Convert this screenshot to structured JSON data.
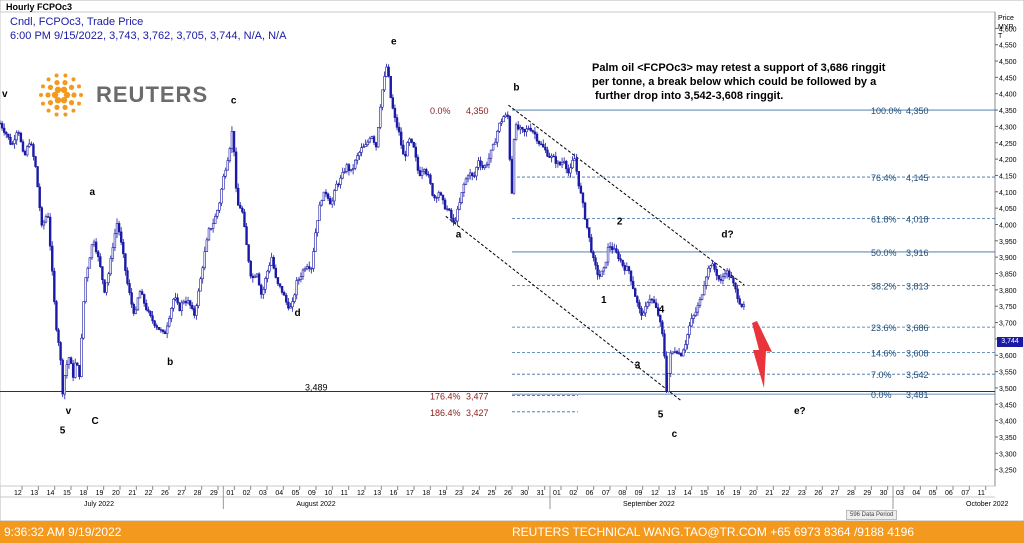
{
  "header": {
    "title": "Hourly FCPOc3",
    "series_desc": "Cndl, FCPOc3, Trade Price",
    "ohlc_line": "6:00 PM 9/15/2022, 3,743, 3,762, 3,705, 3,744, N/A, N/A"
  },
  "logo": {
    "word": "REUTERS"
  },
  "price_axis_title": [
    "Price",
    "MYR",
    "T"
  ],
  "last_price_tag": "3,744",
  "status_bar": {
    "left": "9:36:32 AM 9/19/2022",
    "right": "REUTERS TECHNICAL  WANG.TAO@TR.COM  +65 6973 8364 /9188 4196"
  },
  "data_badge": "596 Data Period",
  "colors": {
    "candle": "#1a1aa6",
    "fib": "#3a6ea5",
    "fib_label": "#1f4e79",
    "ext_label": "#8b1a1a",
    "status_bg": "#f39a1e",
    "arrow": "#e8343a"
  },
  "chart_data": {
    "type": "candlestick",
    "title": "Hourly FCPOc3",
    "ylabel": "Price MYR",
    "ylim": [
      3200,
      4650
    ],
    "y_ticks": [
      3250,
      3300,
      3350,
      3400,
      3450,
      3500,
      3550,
      3600,
      3650,
      3700,
      3750,
      3800,
      3850,
      3900,
      3950,
      4000,
      4050,
      4100,
      4150,
      4200,
      4250,
      4300,
      4350,
      4400,
      4450,
      4500,
      4550,
      4600,
      4650
    ],
    "x_day_labels": [
      "12",
      "13",
      "14",
      "15",
      "18",
      "19",
      "20",
      "21",
      "22",
      "26",
      "27",
      "28",
      "29",
      "01",
      "02",
      "03",
      "04",
      "05",
      "09",
      "10",
      "11",
      "12",
      "13",
      "16",
      "17",
      "18",
      "19",
      "23",
      "24",
      "25",
      "26",
      "30",
      "31",
      "01",
      "02",
      "06",
      "07",
      "08",
      "09",
      "12",
      "13",
      "14",
      "15",
      "16",
      "19",
      "20",
      "21",
      "22",
      "23",
      "26",
      "27",
      "28",
      "29",
      "30",
      "03",
      "04",
      "05",
      "06",
      "07",
      "11"
    ],
    "x_months": [
      "July 2022",
      "August 2022",
      "September 2022",
      "October 2022"
    ],
    "price_path": [
      [
        0,
        4310
      ],
      [
        0.006,
        4280
      ],
      [
        0.012,
        4240
      ],
      [
        0.018,
        4300
      ],
      [
        0.024,
        4200
      ],
      [
        0.03,
        4260
      ],
      [
        0.036,
        4170
      ],
      [
        0.042,
        3990
      ],
      [
        0.048,
        4040
      ],
      [
        0.052,
        3870
      ],
      [
        0.056,
        3700
      ],
      [
        0.06,
        3620
      ],
      [
        0.063,
        3490
      ],
      [
        0.066,
        3560
      ],
      [
        0.07,
        3600
      ],
      [
        0.073,
        3530
      ],
      [
        0.076,
        3580
      ],
      [
        0.08,
        3540
      ],
      [
        0.085,
        3820
      ],
      [
        0.09,
        3900
      ],
      [
        0.094,
        3960
      ],
      [
        0.1,
        3880
      ],
      [
        0.105,
        3800
      ],
      [
        0.11,
        3860
      ],
      [
        0.114,
        3950
      ],
      [
        0.118,
        4010
      ],
      [
        0.124,
        3900
      ],
      [
        0.128,
        3820
      ],
      [
        0.132,
        3760
      ],
      [
        0.136,
        3720
      ],
      [
        0.14,
        3800
      ],
      [
        0.145,
        3760
      ],
      [
        0.15,
        3720
      ],
      [
        0.155,
        3700
      ],
      [
        0.16,
        3680
      ],
      [
        0.165,
        3660
      ],
      [
        0.17,
        3720
      ],
      [
        0.175,
        3780
      ],
      [
        0.18,
        3740
      ],
      [
        0.185,
        3770
      ],
      [
        0.19,
        3760
      ],
      [
        0.195,
        3720
      ],
      [
        0.2,
        3800
      ],
      [
        0.205,
        3900
      ],
      [
        0.21,
        3980
      ],
      [
        0.215,
        4010
      ],
      [
        0.22,
        4060
      ],
      [
        0.225,
        4150
      ],
      [
        0.23,
        4220
      ],
      [
        0.234,
        4300
      ],
      [
        0.238,
        4060
      ],
      [
        0.243,
        4050
      ],
      [
        0.248,
        3930
      ],
      [
        0.253,
        3830
      ],
      [
        0.258,
        3860
      ],
      [
        0.263,
        3780
      ],
      [
        0.268,
        3850
      ],
      [
        0.273,
        3900
      ],
      [
        0.278,
        3820
      ],
      [
        0.283,
        3800
      ],
      [
        0.288,
        3760
      ],
      [
        0.293,
        3740
      ],
      [
        0.298,
        3820
      ],
      [
        0.303,
        3850
      ],
      [
        0.308,
        3880
      ],
      [
        0.313,
        3870
      ],
      [
        0.318,
        4000
      ],
      [
        0.323,
        4080
      ],
      [
        0.328,
        4100
      ],
      [
        0.333,
        4060
      ],
      [
        0.338,
        4120
      ],
      [
        0.343,
        4140
      ],
      [
        0.348,
        4180
      ],
      [
        0.353,
        4160
      ],
      [
        0.358,
        4200
      ],
      [
        0.363,
        4230
      ],
      [
        0.368,
        4240
      ],
      [
        0.373,
        4280
      ],
      [
        0.378,
        4240
      ],
      [
        0.383,
        4390
      ],
      [
        0.389,
        4490
      ],
      [
        0.393,
        4380
      ],
      [
        0.397,
        4320
      ],
      [
        0.401,
        4280
      ],
      [
        0.406,
        4200
      ],
      [
        0.411,
        4260
      ],
      [
        0.416,
        4230
      ],
      [
        0.421,
        4150
      ],
      [
        0.426,
        4180
      ],
      [
        0.431,
        4140
      ],
      [
        0.436,
        4080
      ],
      [
        0.441,
        4100
      ],
      [
        0.446,
        4060
      ],
      [
        0.451,
        4040
      ],
      [
        0.456,
        4000
      ],
      [
        0.461,
        4050
      ],
      [
        0.466,
        4120
      ],
      [
        0.471,
        4160
      ],
      [
        0.476,
        4140
      ],
      [
        0.481,
        4200
      ],
      [
        0.486,
        4170
      ],
      [
        0.491,
        4200
      ],
      [
        0.496,
        4240
      ],
      [
        0.501,
        4300
      ],
      [
        0.506,
        4330
      ],
      [
        0.511,
        4330
      ],
      [
        0.514,
        4060
      ],
      [
        0.517,
        4300
      ],
      [
        0.522,
        4290
      ],
      [
        0.527,
        4280
      ],
      [
        0.532,
        4300
      ],
      [
        0.537,
        4280
      ],
      [
        0.542,
        4250
      ],
      [
        0.547,
        4230
      ],
      [
        0.552,
        4210
      ],
      [
        0.557,
        4200
      ],
      [
        0.562,
        4180
      ],
      [
        0.567,
        4200
      ],
      [
        0.572,
        4150
      ],
      [
        0.577,
        4210
      ],
      [
        0.582,
        4120
      ],
      [
        0.587,
        4040
      ],
      [
        0.592,
        3960
      ],
      [
        0.597,
        3880
      ],
      [
        0.602,
        3840
      ],
      [
        0.607,
        3860
      ],
      [
        0.612,
        3940
      ],
      [
        0.617,
        3920
      ],
      [
        0.622,
        3900
      ],
      [
        0.627,
        3870
      ],
      [
        0.632,
        3860
      ],
      [
        0.637,
        3800
      ],
      [
        0.642,
        3740
      ],
      [
        0.647,
        3720
      ],
      [
        0.652,
        3780
      ],
      [
        0.657,
        3760
      ],
      [
        0.662,
        3720
      ],
      [
        0.667,
        3640
      ],
      [
        0.67,
        3490
      ],
      [
        0.674,
        3600
      ],
      [
        0.679,
        3620
      ],
      [
        0.684,
        3600
      ],
      [
        0.689,
        3640
      ],
      [
        0.694,
        3700
      ],
      [
        0.699,
        3730
      ],
      [
        0.704,
        3770
      ],
      [
        0.709,
        3840
      ],
      [
        0.714,
        3880
      ],
      [
        0.719,
        3860
      ],
      [
        0.724,
        3820
      ],
      [
        0.729,
        3860
      ],
      [
        0.734,
        3840
      ],
      [
        0.739,
        3800
      ],
      [
        0.744,
        3760
      ],
      [
        0.748,
        3744
      ]
    ],
    "wave_labels": [
      {
        "text": "v",
        "x": 0.002,
        "y": 4390
      },
      {
        "text": "a",
        "x": 0.09,
        "y": 4090
      },
      {
        "text": "b",
        "x": 0.168,
        "y": 3570
      },
      {
        "text": "c",
        "x": 0.232,
        "y": 4370
      },
      {
        "text": "d",
        "x": 0.296,
        "y": 3720
      },
      {
        "text": "e",
        "x": 0.393,
        "y": 4550
      },
      {
        "text": "a",
        "x": 0.458,
        "y": 3960
      },
      {
        "text": "b",
        "x": 0.516,
        "y": 4410
      },
      {
        "text": "2",
        "x": 0.62,
        "y": 4000
      },
      {
        "text": "1",
        "x": 0.604,
        "y": 3760
      },
      {
        "text": "4",
        "x": 0.662,
        "y": 3730
      },
      {
        "text": "3",
        "x": 0.638,
        "y": 3560
      },
      {
        "text": "5",
        "x": 0.661,
        "y": 3410
      },
      {
        "text": "c",
        "x": 0.675,
        "y": 3350
      },
      {
        "text": "d?",
        "x": 0.725,
        "y": 3960
      },
      {
        "text": "e?",
        "x": 0.798,
        "y": 3420
      },
      {
        "text": "v",
        "x": 0.066,
        "y": 3420
      },
      {
        "text": "5",
        "x": 0.06,
        "y": 3360
      },
      {
        "text": "C",
        "x": 0.092,
        "y": 3390
      }
    ],
    "fib_levels": [
      {
        "pct": "100.0%",
        "value": "4,350",
        "y": 4350,
        "solid": true
      },
      {
        "pct": "76.4%",
        "value": "4,145",
        "y": 4145,
        "solid": false
      },
      {
        "pct": "61.8%",
        "value": "4,018",
        "y": 4018,
        "solid": false
      },
      {
        "pct": "50.0%",
        "value": "3,916",
        "y": 3916,
        "solid": true
      },
      {
        "pct": "38.2%",
        "value": "3,813",
        "y": 3813,
        "solid": false
      },
      {
        "pct": "23.6%",
        "value": "3,686",
        "y": 3686,
        "solid": false
      },
      {
        "pct": "14.6%",
        "value": "3,608",
        "y": 3608,
        "solid": false
      },
      {
        "pct": "7.0%",
        "value": "3,542",
        "y": 3542,
        "solid": false
      },
      {
        "pct": "0.0%",
        "value": "3,481",
        "y": 3481,
        "solid": true
      }
    ],
    "ext_levels": [
      {
        "pct": "0.0%",
        "value": "4,350",
        "y": 4350
      },
      {
        "pct": "176.4%",
        "value": "3,477",
        "y": 3477
      },
      {
        "pct": "186.4%",
        "value": "3,427",
        "y": 3427
      }
    ],
    "support_line": {
      "label": "3,489",
      "y": 3489
    },
    "channel_upper": [
      [
        0.511,
        4365
      ],
      [
        0.748,
        3815
      ]
    ],
    "channel_lower": [
      [
        0.448,
        4025
      ],
      [
        0.685,
        3460
      ]
    ],
    "annotation": [
      "Palm oil <FCPOc3> may retest a support of 3,686 ringgit",
      "per tonne, a break below which could be followed by a",
      " further drop into 3,542-3,608 ringgit."
    ]
  }
}
